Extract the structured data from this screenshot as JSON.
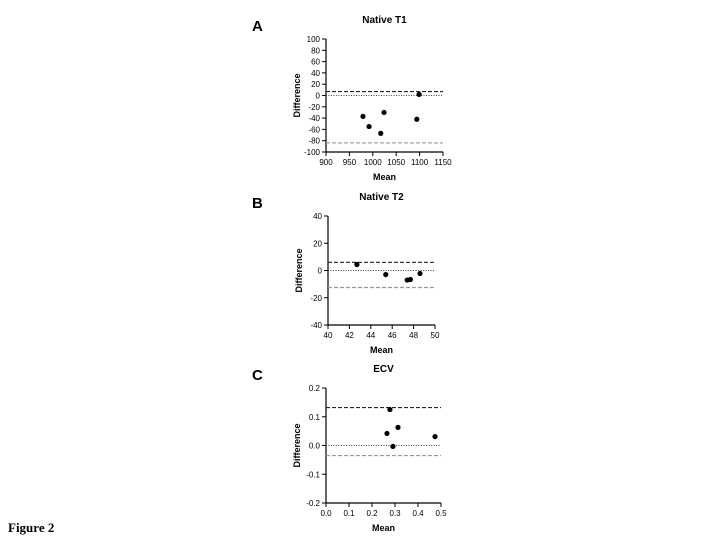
{
  "figure_label": "Figure 2",
  "chart_data": [
    {
      "type": "scatter",
      "panel_label": "A",
      "title": "Native T1",
      "x_label": "Mean",
      "y_label": "Difference",
      "x": [
        979,
        992,
        1017,
        1024,
        1094,
        1099
      ],
      "values": [
        -37,
        -55,
        -67,
        -30,
        -42,
        2
      ],
      "color": "#000000",
      "xlim": [
        900,
        1150
      ],
      "xticks": [
        900,
        950,
        1000,
        1050,
        1100,
        1150
      ],
      "ylim": [
        -100,
        100
      ],
      "yticks": [
        -100,
        -80,
        -60,
        -40,
        -20,
        0,
        20,
        40,
        60,
        80,
        100
      ],
      "hlines": [
        {
          "value": 7,
          "style": "dashed",
          "color": "#222222"
        },
        {
          "value": 0,
          "style": "dotted",
          "color": "#444444"
        },
        {
          "value": -84,
          "style": "dashed",
          "color": "#999999"
        }
      ]
    },
    {
      "type": "scatter",
      "panel_label": "B",
      "title": "Native T2",
      "x_label": "Mean",
      "y_label": "Difference",
      "x": [
        42.7,
        45.4,
        47.4,
        47.7,
        48.6
      ],
      "values": [
        4.4,
        -3,
        -7,
        -6.6,
        -2.2
      ],
      "color": "#000000",
      "xlim": [
        40,
        50
      ],
      "xticks": [
        40,
        42,
        44,
        46,
        48,
        50
      ],
      "ylim": [
        -40,
        40
      ],
      "yticks": [
        -40,
        -20,
        0,
        20,
        40
      ],
      "hlines": [
        {
          "value": 6,
          "style": "dashed",
          "color": "#222222"
        },
        {
          "value": 0,
          "style": "dotted",
          "color": "#444444"
        },
        {
          "value": -12.5,
          "style": "dashed",
          "color": "#999999"
        }
      ]
    },
    {
      "type": "scatter",
      "panel_label": "C",
      "title": "ECV",
      "x_label": "Mean",
      "y_label": "Difference",
      "x": [
        0.265,
        0.278,
        0.291,
        0.313,
        0.474
      ],
      "values": [
        0.042,
        0.125,
        -0.003,
        0.063,
        0.031
      ],
      "color": "#000000",
      "xlim": [
        0,
        0.5
      ],
      "xticks": [
        {
          "value": 0,
          "label": "0.0"
        },
        0.1,
        0.2,
        0.3,
        0.4,
        0.5
      ],
      "ylim": [
        -0.2,
        0.2
      ],
      "yticks": [
        -0.2,
        -0.1,
        {
          "value": 0,
          "label": "0.0"
        },
        0.1,
        0.2
      ],
      "hlines": [
        {
          "value": 0.132,
          "style": "dashed",
          "color": "#222222"
        },
        {
          "value": 0,
          "style": "dotted",
          "color": "#444444"
        },
        {
          "value": -0.035,
          "style": "dashed",
          "color": "#999999"
        }
      ]
    }
  ]
}
